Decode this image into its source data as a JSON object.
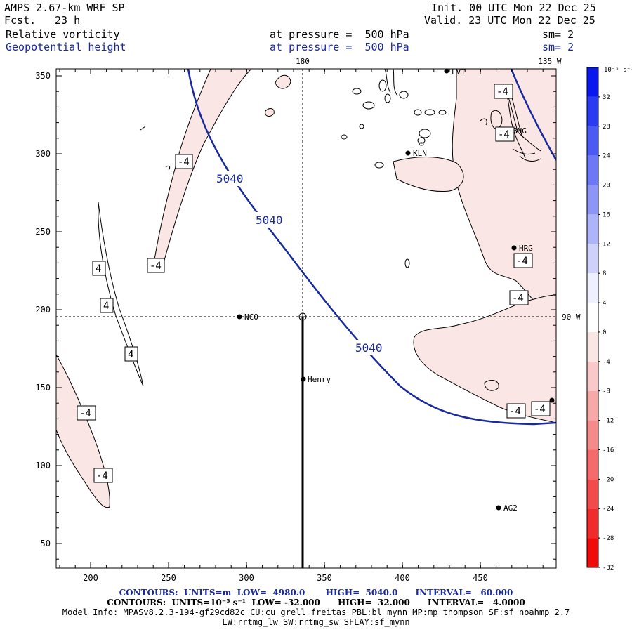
{
  "header": {
    "model": "AMPS 2.67-km WRF SP",
    "fcst_label": "Fcst.",
    "fcst_value": "23 h",
    "init": "Init. 00 UTC Mon 22 Dec 25",
    "valid": "Valid. 23 UTC Mon 22 Dec 25",
    "field1": "Relative vorticity",
    "field1_level": "at pressure =  500 hPa",
    "field1_sm": "sm= 2",
    "field2": "Geopotential height",
    "field2_level": "at pressure =  500 hPa",
    "field2_sm": "sm= 2"
  },
  "map": {
    "lon_labels": {
      "top_180": "180",
      "top_135w": "135 W",
      "right_90w": "90 W"
    },
    "x_ticks": [
      "200",
      "250",
      "300",
      "350",
      "400",
      "450"
    ],
    "y_ticks": [
      "50",
      "100",
      "150",
      "200",
      "250",
      "300",
      "350"
    ],
    "stations": [
      {
        "name": "NCO"
      },
      {
        "name": "Henry"
      },
      {
        "name": "KLN"
      },
      {
        "name": "HRG"
      },
      {
        "name": "AG2"
      },
      {
        "name": "LVT"
      },
      {
        "name": "BNG"
      }
    ],
    "height_contour_labels": [
      "5040",
      "5040",
      "5040"
    ],
    "vort_labels": [
      "-4",
      "-4",
      "-4",
      "-4",
      "-4",
      "-4",
      "-4",
      "-4",
      "-4",
      "4",
      "4",
      "4"
    ]
  },
  "colorbar": {
    "unit": "10⁻⁵ s⁻¹",
    "labels": [
      "32",
      "28",
      "24",
      "20",
      "16",
      "12",
      "8",
      "4",
      "0",
      "-4",
      "-8",
      "-12",
      "-16",
      "-20",
      "-24",
      "-28",
      "-32"
    ],
    "colors": [
      "#0a18f0",
      "#2a3bf2",
      "#4c5af4",
      "#6c78f5",
      "#8d96f7",
      "#adb4f9",
      "#ced2fb",
      "#eef0ff",
      "#ffffff",
      "#fbe6e6",
      "#f9c8c8",
      "#f7a9a9",
      "#f58a8a",
      "#f56b6b",
      "#f34b4b",
      "#f12b2b",
      "#f00a0a"
    ]
  },
  "footer": {
    "line1": "CONTOURS:  UNITS=m  LOW=  4980.0       HIGH=  5040.0      INTERVAL=   60.000",
    "line2": "CONTOURS:  UNITS=10⁻⁵ s⁻¹  LOW= -32.000      HIGH=  32.000      INTERVAL=   4.0000",
    "line3": "Model Info: MPASv8.2.3-194-gf29cd82c CU:cu_grell_freitas PBL:bl_mynn MP:mp_thompson SF:sf_noahmp 2.7",
    "line4": "LW:rrtmg_lw SW:rrtmg_sw SFLAY:sf_mynn"
  }
}
